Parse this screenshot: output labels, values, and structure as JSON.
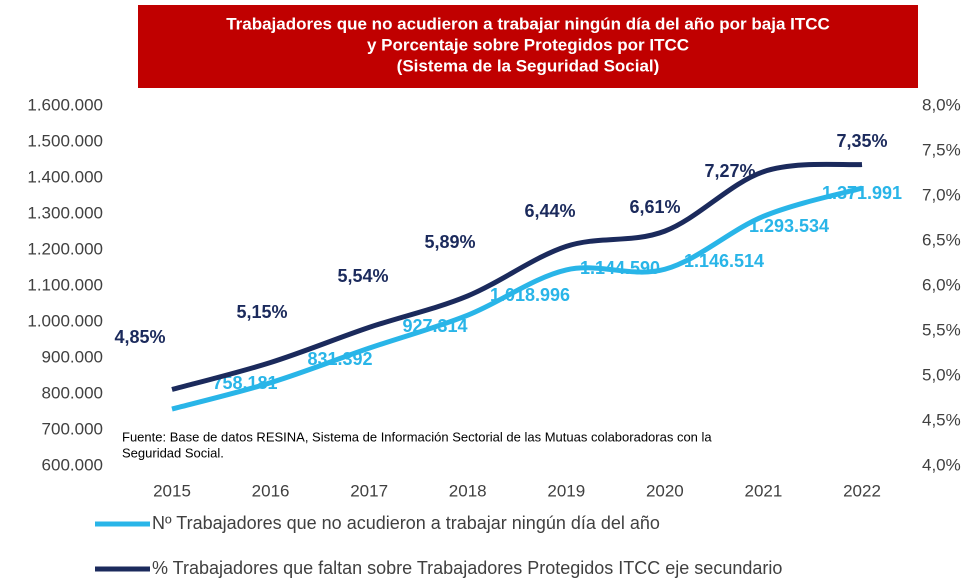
{
  "chart_data": {
    "type": "line",
    "title_lines": [
      "Trabajadores que no acudieron a trabajar ningún día del año por baja ITCC",
      "y Porcentaje sobre Protegidos por ITCC",
      "(Sistema de la Seguridad Social)"
    ],
    "annotation": [
      "Fuente: Base de datos RESINA, Sistema de Información Sectorial de las Mutuas colaboradoras con la",
      "Seguridad Social."
    ],
    "categories": [
      "2015",
      "2016",
      "2017",
      "2018",
      "2019",
      "2020",
      "2021",
      "2022"
    ],
    "series": [
      {
        "name": "Nº Trabajadores que no acudieron a trabajar ningún día del año",
        "color": "#29b5e8",
        "values": [
          758181,
          831392,
          927314,
          1018996,
          1144590,
          1146514,
          1293534,
          1371991
        ],
        "value_labels": [
          "758.181",
          "831.392",
          "927.314",
          "1.018.996",
          "1.144.590",
          "1.146.514",
          "1.293.534",
          "1.371.991"
        ]
      },
      {
        "name": "% Trabajadores que faltan sobre Trabajadores Protegidos ITCC  eje secundario",
        "color": "#1b2a5c",
        "axis": "y2",
        "values": [
          4.85,
          5.15,
          5.54,
          5.89,
          6.44,
          6.61,
          7.27,
          7.35
        ],
        "value_labels": [
          "4,85%",
          "5,15%",
          "5,54%",
          "5,89%",
          "6,44%",
          "6,61%",
          "7,27%",
          "7,35%"
        ]
      }
    ],
    "ylim": [
      600000,
      1600000
    ],
    "yticks": [
      {
        "value": 600000,
        "label": "600.000"
      },
      {
        "value": 700000,
        "label": "700.000"
      },
      {
        "value": 800000,
        "label": "800.000"
      },
      {
        "value": 900000,
        "label": "900.000"
      },
      {
        "value": 1000000,
        "label": "1.000.000"
      },
      {
        "value": 1100000,
        "label": "1.100.000"
      },
      {
        "value": 1200000,
        "label": "1.200.000"
      },
      {
        "value": 1300000,
        "label": "1.300.000"
      },
      {
        "value": 1400000,
        "label": "1.400.000"
      },
      {
        "value": 1500000,
        "label": "1.500.000"
      },
      {
        "value": 1600000,
        "label": "1.600.000"
      }
    ],
    "y2lim": [
      4,
      8
    ],
    "y2ticks": [
      {
        "value": 4,
        "label": "4,0%"
      },
      {
        "value": 4.5,
        "label": "4,5%"
      },
      {
        "value": 5,
        "label": "5,0%"
      },
      {
        "value": 5.5,
        "label": "5,5%"
      },
      {
        "value": 6,
        "label": "6,0%"
      },
      {
        "value": 6.5,
        "label": "6,5%"
      },
      {
        "value": 7,
        "label": "7,0%"
      },
      {
        "value": 7.5,
        "label": "7,5%"
      },
      {
        "value": 8,
        "label": "8,0%"
      }
    ],
    "legend": "bottom"
  }
}
